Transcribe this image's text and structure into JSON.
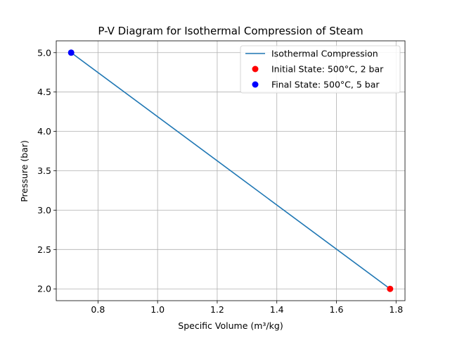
{
  "chart_data": {
    "type": "line",
    "title": "P-V Diagram for Isothermal Compression of Steam",
    "xlabel": "Specific Volume (m³/kg)",
    "ylabel": "Pressure (bar)",
    "xlim": [
      0.66,
      1.83
    ],
    "ylim": [
      1.85,
      5.15
    ],
    "xticks": [
      0.8,
      1.0,
      1.2,
      1.4,
      1.6,
      1.8
    ],
    "xtick_labels": [
      "0.8",
      "1.0",
      "1.2",
      "1.4",
      "1.6",
      "1.8"
    ],
    "yticks": [
      2.0,
      2.5,
      3.0,
      3.5,
      4.0,
      4.5,
      5.0
    ],
    "ytick_labels": [
      "2.0",
      "2.5",
      "3.0",
      "3.5",
      "4.0",
      "4.5",
      "5.0"
    ],
    "grid": true,
    "legend_position": "top-right",
    "series": [
      {
        "name": "Isothermal Compression",
        "kind": "line",
        "color": "#1f77b4",
        "x": [
          1.78,
          0.71
        ],
        "y": [
          2.0,
          5.0
        ]
      },
      {
        "name": "Initial State: 500°C, 2 bar",
        "kind": "scatter",
        "color": "#ff0000",
        "x": [
          1.78
        ],
        "y": [
          2.0
        ]
      },
      {
        "name": "Final State: 500°C, 5 bar",
        "kind": "scatter",
        "color": "#0000ff",
        "x": [
          0.71
        ],
        "y": [
          5.0
        ]
      }
    ]
  }
}
